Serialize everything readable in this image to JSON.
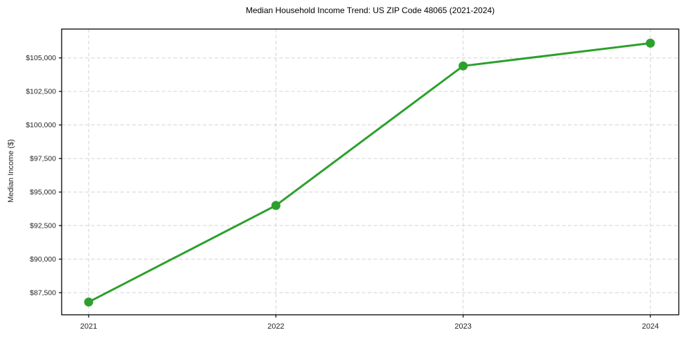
{
  "chart_data": {
    "type": "line",
    "title": "Median Household Income Trend: US ZIP Code 48065 (2021-2024)",
    "xlabel": "",
    "ylabel": "Median Income ($)",
    "categories": [
      "2021",
      "2022",
      "2023",
      "2024"
    ],
    "values": [
      86800,
      94000,
      104400,
      106100
    ],
    "ylim": [
      85850,
      107150
    ],
    "yticks": [
      87500,
      90000,
      92500,
      95000,
      97500,
      100000,
      102500,
      105000
    ],
    "ytick_labels": [
      "$87,500",
      "$90,000",
      "$92,500",
      "$95,000",
      "$97,500",
      "$100,000",
      "$102,500",
      "$105,000"
    ],
    "grid": true,
    "grid_style": "dashed",
    "legend": "none",
    "marker": "circle",
    "colors": {
      "line": "#2ca02c",
      "marker": "#2ca02c",
      "grid": "#d2d2d2",
      "spine": "#000000",
      "tick_text": "#262626",
      "title_text": "#000000",
      "background": "#ffffff"
    }
  }
}
